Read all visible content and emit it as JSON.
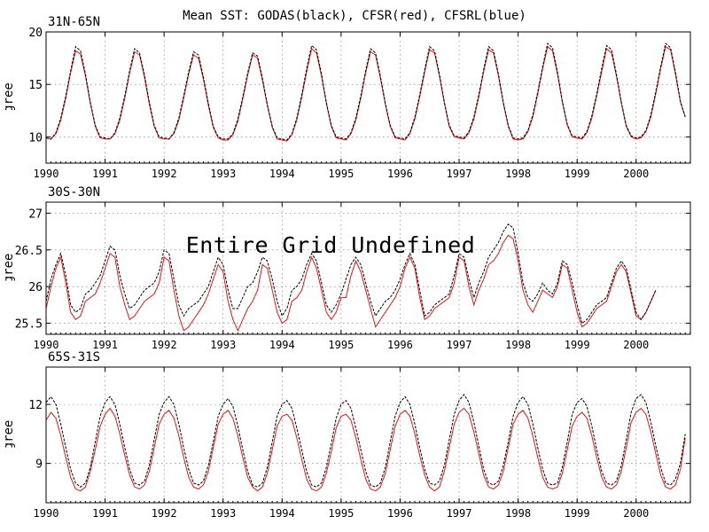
{
  "figure": {
    "title": "Mean SST: GODAS(black), CFSR(red), CFSRL(blue)",
    "overlay_text": "Entire Grid Undefined"
  },
  "colors": {
    "godas": "#000000",
    "cfsr": "#e8131b",
    "cfsrl": "#0000ff"
  },
  "chart_data": [
    {
      "type": "line",
      "panel_label": "31N-65N",
      "ylabel": "Degree C",
      "xlim": [
        1990.0,
        2000.92
      ],
      "ylim": [
        7.5,
        20
      ],
      "yticks": [
        10,
        15,
        20
      ],
      "xticks": [
        1990,
        1991,
        1992,
        1993,
        1994,
        1995,
        1996,
        1997,
        1998,
        1999,
        2000
      ],
      "grid": true,
      "series": [
        {
          "color": "black",
          "x_start": 1990.0,
          "x_step": 0.08333,
          "values": [
            9.9,
            9.8,
            10.4,
            11.8,
            13.9,
            16.3,
            18.6,
            18.2,
            16.0,
            13.3,
            11.1,
            10.0,
            9.9,
            9.8,
            10.4,
            11.8,
            13.9,
            16.3,
            18.4,
            18.0,
            15.9,
            13.3,
            11.1,
            10.0,
            9.9,
            9.8,
            10.4,
            11.8,
            13.9,
            16.2,
            18.1,
            17.8,
            15.7,
            13.2,
            11.0,
            10.0,
            9.8,
            9.8,
            10.3,
            11.7,
            13.8,
            16.1,
            18.0,
            17.7,
            15.6,
            13.1,
            11.0,
            9.9,
            9.8,
            9.7,
            10.3,
            11.8,
            14.0,
            16.5,
            18.7,
            18.3,
            16.0,
            13.3,
            11.1,
            10.0,
            9.9,
            9.8,
            10.4,
            11.8,
            13.9,
            16.3,
            18.4,
            18.0,
            15.8,
            13.2,
            11.1,
            10.0,
            9.9,
            9.8,
            10.4,
            11.9,
            14.0,
            16.4,
            18.6,
            18.2,
            16.0,
            13.3,
            11.1,
            10.1,
            10.0,
            9.9,
            10.5,
            11.9,
            14.0,
            16.4,
            18.6,
            18.2,
            16.0,
            13.3,
            11.1,
            9.9,
            9.8,
            9.9,
            10.6,
            12.1,
            14.3,
            16.7,
            18.9,
            18.5,
            16.2,
            13.4,
            11.2,
            10.1,
            10.0,
            9.9,
            10.5,
            12.0,
            14.1,
            16.5,
            18.7,
            18.3,
            16.0,
            13.3,
            11.1,
            10.1,
            9.9,
            10.0,
            10.6,
            12.1,
            14.3,
            16.7,
            18.9,
            18.5,
            16.2,
            13.4,
            11.9
          ]
        },
        {
          "color": "red",
          "x_start": 1990.0,
          "x_step": 0.08333,
          "values": [
            9.9,
            9.8,
            10.3,
            11.6,
            13.7,
            16.1,
            18.2,
            17.9,
            15.8,
            13.2,
            11.0,
            9.9,
            9.8,
            9.8,
            10.3,
            11.6,
            13.7,
            16.1,
            18.1,
            17.8,
            15.7,
            13.1,
            11.0,
            9.9,
            9.8,
            9.8,
            10.3,
            11.6,
            13.7,
            16.0,
            17.8,
            17.5,
            15.5,
            13.0,
            10.9,
            9.9,
            9.7,
            9.7,
            10.2,
            11.5,
            13.6,
            15.9,
            17.8,
            17.5,
            15.4,
            13.0,
            10.9,
            9.8,
            9.7,
            9.6,
            10.2,
            11.6,
            13.8,
            16.2,
            18.4,
            18.0,
            15.8,
            13.2,
            11.0,
            9.9,
            9.8,
            9.7,
            10.3,
            11.6,
            13.7,
            16.1,
            18.1,
            17.8,
            15.6,
            13.1,
            11.0,
            9.9,
            9.8,
            9.7,
            10.3,
            11.7,
            13.8,
            16.2,
            18.3,
            18.0,
            15.8,
            13.2,
            11.0,
            10.0,
            9.9,
            9.8,
            10.4,
            11.7,
            13.8,
            16.2,
            18.3,
            18.0,
            15.8,
            13.2,
            11.0,
            9.8,
            9.7,
            9.8,
            10.5,
            11.9,
            14.1,
            16.5,
            18.6,
            18.2,
            16.0,
            13.3,
            11.1,
            10.0,
            9.9,
            9.8,
            10.4,
            11.8,
            13.9,
            16.2,
            18.4,
            18.0,
            15.8,
            13.2,
            11.0,
            10.0,
            9.8,
            9.9,
            10.5,
            11.9,
            14.1,
            16.5,
            18.6,
            18.3,
            16.0,
            13.3,
            11.9
          ]
        }
      ]
    },
    {
      "type": "line",
      "panel_label": "30S-30N",
      "ylabel": "Degree C",
      "xlim": [
        1990.0,
        2000.92
      ],
      "ylim": [
        25.35,
        27.15
      ],
      "yticks": [
        25.5,
        26,
        26.5,
        27
      ],
      "xticks": [
        1990,
        1991,
        1992,
        1993,
        1994,
        1995,
        1996,
        1997,
        1998,
        1999,
        2000
      ],
      "grid": true,
      "series": [
        {
          "color": "black",
          "x_start": 1990.0,
          "x_step": 0.08333,
          "values": [
            25.8,
            26.1,
            26.3,
            26.45,
            26.15,
            25.75,
            25.65,
            25.7,
            25.9,
            25.95,
            26.05,
            26.15,
            26.35,
            26.55,
            26.5,
            26.15,
            25.9,
            25.7,
            25.75,
            25.85,
            25.95,
            26.0,
            26.05,
            26.2,
            26.5,
            26.45,
            26.1,
            25.75,
            25.6,
            25.7,
            25.75,
            25.8,
            25.9,
            26.0,
            26.2,
            26.4,
            26.3,
            25.95,
            25.7,
            25.7,
            25.85,
            26.0,
            26.05,
            26.2,
            26.4,
            26.35,
            26.1,
            25.8,
            25.6,
            25.7,
            25.95,
            26.0,
            26.1,
            26.3,
            26.45,
            26.35,
            26.05,
            25.75,
            25.65,
            25.75,
            25.9,
            26.1,
            26.3,
            26.4,
            26.3,
            26.05,
            25.8,
            25.6,
            25.7,
            25.8,
            25.85,
            25.95,
            26.1,
            26.3,
            26.45,
            26.3,
            25.95,
            25.6,
            25.65,
            25.75,
            25.8,
            25.85,
            25.9,
            26.15,
            26.45,
            26.4,
            26.1,
            25.85,
            26.05,
            26.2,
            26.4,
            26.5,
            26.6,
            26.75,
            26.85,
            26.8,
            26.45,
            26.05,
            25.85,
            25.8,
            25.9,
            26.05,
            25.95,
            25.9,
            26.05,
            26.35,
            26.3,
            26.05,
            25.75,
            25.5,
            25.55,
            25.65,
            25.75,
            25.8,
            25.85,
            26.05,
            26.25,
            26.35,
            26.25,
            25.95,
            25.65,
            25.55,
            25.65,
            25.8,
            25.95
          ]
        },
        {
          "color": "red",
          "x_start": 1990.0,
          "x_step": 0.08333,
          "values": [
            25.7,
            26.0,
            26.25,
            26.4,
            26.05,
            25.65,
            25.55,
            25.6,
            25.8,
            25.85,
            25.9,
            26.05,
            26.25,
            26.45,
            26.4,
            26.0,
            25.75,
            25.55,
            25.6,
            25.7,
            25.8,
            25.85,
            25.9,
            26.05,
            26.4,
            26.35,
            25.95,
            25.6,
            25.4,
            25.45,
            25.55,
            25.65,
            25.75,
            25.9,
            26.1,
            26.3,
            26.2,
            25.8,
            25.55,
            25.4,
            25.55,
            25.7,
            25.8,
            25.95,
            26.3,
            26.25,
            25.95,
            25.65,
            25.5,
            25.55,
            25.8,
            25.85,
            25.95,
            26.2,
            26.4,
            26.25,
            25.95,
            25.65,
            25.55,
            25.65,
            25.85,
            25.85,
            26.15,
            26.35,
            26.2,
            25.95,
            25.7,
            25.45,
            25.55,
            25.65,
            25.75,
            25.85,
            26.0,
            26.25,
            26.4,
            26.25,
            25.85,
            25.55,
            25.6,
            25.7,
            25.75,
            25.8,
            25.85,
            26.05,
            26.4,
            26.35,
            26.0,
            25.75,
            25.95,
            26.1,
            26.3,
            26.35,
            26.45,
            26.6,
            26.7,
            26.65,
            26.35,
            25.95,
            25.75,
            25.65,
            25.8,
            25.95,
            25.9,
            25.85,
            26.0,
            26.3,
            26.25,
            25.95,
            25.65,
            25.45,
            25.5,
            25.6,
            25.7,
            25.75,
            25.8,
            26.0,
            26.2,
            26.3,
            26.2,
            25.9,
            25.6,
            25.55,
            25.65,
            25.8,
            25.95
          ]
        }
      ]
    },
    {
      "type": "line",
      "panel_label": "65S-31S",
      "ylabel": "Degree C",
      "xlim": [
        1990.0,
        2000.92
      ],
      "ylim": [
        7.0,
        13.9
      ],
      "yticks": [
        9,
        12
      ],
      "xticks": [
        1990,
        1991,
        1992,
        1993,
        1994,
        1995,
        1996,
        1997,
        1998,
        1999,
        2000
      ],
      "grid": true,
      "series": [
        {
          "color": "black",
          "x_start": 1990.0,
          "x_step": 0.08333,
          "values": [
            12.1,
            12.4,
            12.0,
            11.0,
            9.8,
            8.7,
            8.0,
            7.8,
            8.0,
            8.8,
            10.1,
            11.4,
            12.1,
            12.4,
            12.0,
            11.0,
            9.8,
            8.7,
            8.0,
            7.9,
            8.1,
            8.9,
            10.2,
            11.5,
            12.1,
            12.4,
            12.0,
            11.0,
            9.8,
            8.7,
            8.0,
            7.9,
            8.1,
            8.9,
            10.1,
            11.4,
            12.0,
            12.3,
            11.9,
            10.9,
            9.7,
            8.6,
            7.9,
            7.8,
            8.0,
            8.8,
            10.1,
            11.4,
            12.0,
            12.2,
            11.8,
            10.8,
            9.7,
            8.6,
            7.9,
            7.8,
            8.0,
            8.8,
            10.0,
            11.3,
            12.0,
            12.2,
            11.8,
            10.8,
            9.7,
            8.6,
            7.9,
            7.8,
            8.0,
            8.8,
            10.1,
            11.4,
            12.1,
            12.4,
            12.0,
            11.0,
            9.8,
            8.7,
            8.0,
            7.9,
            8.1,
            8.9,
            10.2,
            11.5,
            12.2,
            12.5,
            12.1,
            11.1,
            9.9,
            8.7,
            8.0,
            7.9,
            8.1,
            8.9,
            10.1,
            11.4,
            12.1,
            12.4,
            12.0,
            11.0,
            9.8,
            8.7,
            8.0,
            7.9,
            8.0,
            8.8,
            10.1,
            11.5,
            12.1,
            12.3,
            11.9,
            10.9,
            9.7,
            8.6,
            8.0,
            7.9,
            8.1,
            8.9,
            10.2,
            11.6,
            12.3,
            12.5,
            12.1,
            11.1,
            9.9,
            8.8,
            8.0,
            7.9,
            8.2,
            9.0,
            10.5
          ]
        },
        {
          "color": "red",
          "x_start": 1990.0,
          "x_step": 0.08333,
          "values": [
            11.2,
            11.6,
            11.3,
            10.4,
            9.3,
            8.3,
            7.7,
            7.6,
            7.8,
            8.6,
            9.7,
            10.9,
            11.5,
            11.8,
            11.4,
            10.5,
            9.4,
            8.4,
            7.8,
            7.7,
            7.9,
            8.6,
            9.8,
            11.0,
            11.5,
            11.7,
            11.3,
            10.4,
            9.3,
            8.3,
            7.8,
            7.7,
            7.9,
            8.6,
            9.8,
            11.0,
            11.5,
            11.7,
            11.3,
            10.4,
            9.3,
            8.3,
            7.8,
            7.6,
            7.8,
            8.5,
            9.7,
            10.9,
            11.4,
            11.5,
            11.2,
            10.3,
            9.2,
            8.2,
            7.7,
            7.6,
            7.8,
            8.5,
            9.6,
            10.8,
            11.4,
            11.5,
            11.2,
            10.3,
            9.2,
            8.2,
            7.7,
            7.6,
            7.8,
            8.5,
            9.7,
            10.9,
            11.5,
            11.7,
            11.4,
            10.5,
            9.4,
            8.4,
            7.8,
            7.6,
            7.8,
            8.6,
            9.8,
            11.0,
            11.6,
            11.8,
            11.5,
            10.6,
            9.5,
            8.4,
            7.8,
            7.7,
            7.9,
            8.6,
            9.8,
            11.0,
            11.5,
            11.7,
            11.3,
            10.4,
            9.3,
            8.3,
            7.8,
            7.7,
            7.8,
            8.5,
            9.7,
            10.9,
            11.4,
            11.6,
            11.3,
            10.4,
            9.3,
            8.3,
            7.8,
            7.7,
            7.9,
            8.6,
            9.8,
            11.1,
            11.6,
            11.8,
            11.5,
            10.6,
            9.5,
            8.4,
            7.8,
            7.7,
            7.9,
            8.7,
            10.3
          ]
        }
      ]
    }
  ]
}
